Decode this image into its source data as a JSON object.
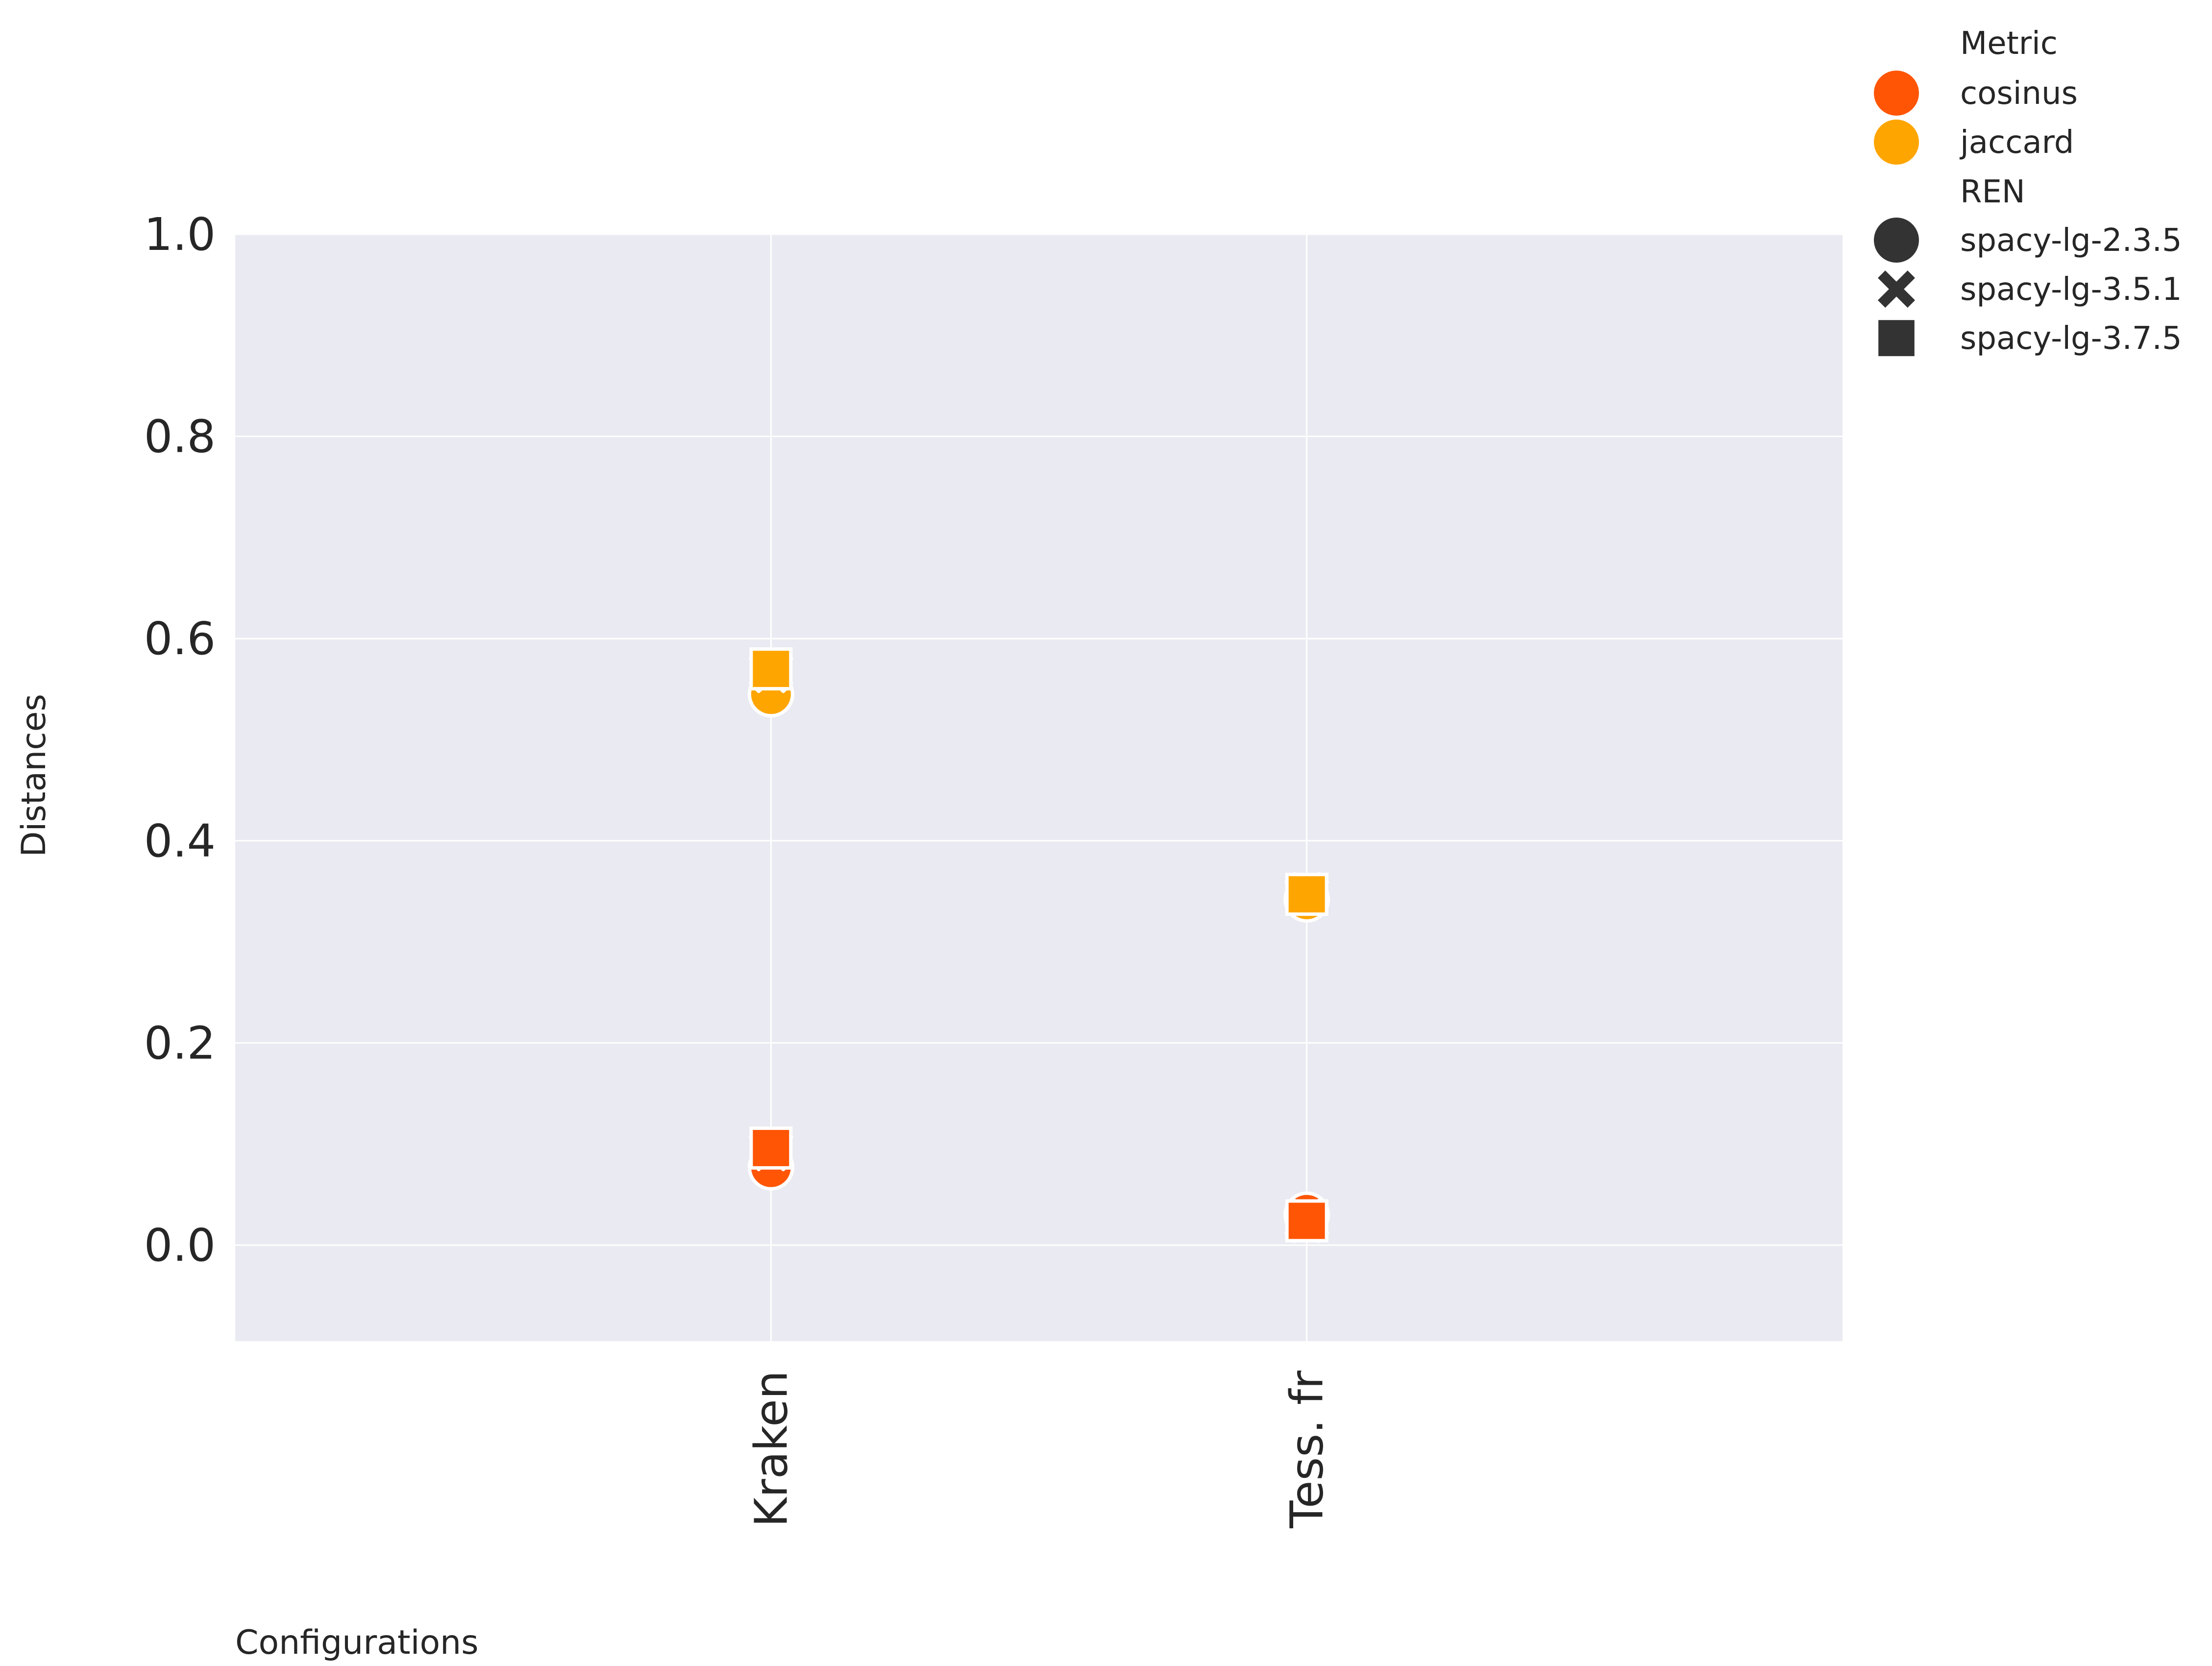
{
  "chart_data": {
    "type": "scatter",
    "title": "",
    "xlabel": "Configurations",
    "ylabel": "Distances",
    "categories": [
      "Kraken",
      "Tess. fr"
    ],
    "ylim": [
      -0.095,
      1.0
    ],
    "yticks": [
      0.0,
      0.2,
      0.4,
      0.6,
      0.8,
      1.0
    ],
    "ytick_labels": [
      "0.0",
      "0.2",
      "0.4",
      "0.6",
      "0.8",
      "1.0"
    ],
    "grid": true,
    "legend_position": "outside-top-right",
    "legend": {
      "hue_title": "Metric",
      "hue_entries": [
        {
          "name": "cosinus",
          "color": "#FF5505"
        },
        {
          "name": "jaccard",
          "color": "#FFA500"
        }
      ],
      "style_title": "REN",
      "style_entries": [
        {
          "name": "spacy-lg-2.3.5",
          "marker": "circle"
        },
        {
          "name": "spacy-lg-3.5.1",
          "marker": "x"
        },
        {
          "name": "spacy-lg-3.7.5",
          "marker": "square"
        }
      ]
    },
    "series": [
      {
        "metric": "cosinus",
        "model": "spacy-lg-2.3.5",
        "marker": "circle",
        "color": "#FF5505",
        "values": [
          0.077,
          0.03
        ]
      },
      {
        "metric": "cosinus",
        "model": "spacy-lg-3.5.1",
        "marker": "x",
        "color": "#FF5505",
        "values": [
          0.095,
          0.024
        ]
      },
      {
        "metric": "cosinus",
        "model": "spacy-lg-3.7.5",
        "marker": "square",
        "color": "#FF5505",
        "values": [
          0.096,
          0.024
        ]
      },
      {
        "metric": "jaccard",
        "model": "spacy-lg-2.3.5",
        "marker": "circle",
        "color": "#FFA500",
        "values": [
          0.545,
          0.342
        ]
      },
      {
        "metric": "jaccard",
        "model": "spacy-lg-3.5.1",
        "marker": "x",
        "color": "#FFA500",
        "values": [
          0.568,
          0.347
        ]
      },
      {
        "metric": "jaccard",
        "model": "spacy-lg-3.7.5",
        "marker": "square",
        "color": "#FFA500",
        "values": [
          0.57,
          0.347
        ]
      }
    ],
    "colors": {
      "plot_background": "#EAEAF2",
      "grid": "#FFFFFF",
      "text": "#262626",
      "legend_marker_neutral": "#333333"
    }
  }
}
